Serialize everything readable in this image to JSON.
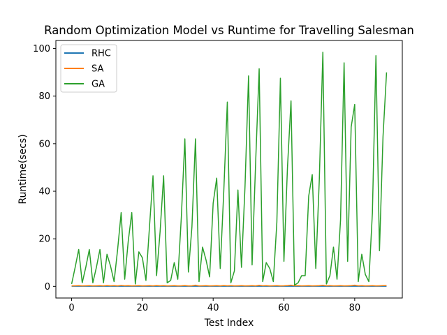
{
  "chart_data": {
    "type": "line",
    "title": "Random Optimization Model vs Runtime for Travelling Salesman",
    "xlabel": "Test Index",
    "ylabel": "Runtime(secs)",
    "xlim": [
      -4.45,
      93.45
    ],
    "ylim": [
      -4.9,
      103.4
    ],
    "xticks": [
      0,
      20,
      40,
      60,
      80
    ],
    "yticks": [
      0,
      20,
      40,
      60,
      80,
      100
    ],
    "legend_position": "upper-left",
    "grid": false,
    "series": [
      {
        "name": "RHC",
        "color": "#1f77b4",
        "values": [
          0.05,
          0.06,
          0.05,
          0.07,
          0.06,
          0.05,
          0.08,
          0.06,
          0.05,
          0.07,
          0.06,
          0.05,
          0.06,
          0.07,
          0.05,
          0.06,
          0.07,
          0.05,
          0.06,
          0.08,
          0.06,
          0.05,
          0.07,
          0.06,
          0.05,
          0.07,
          0.06,
          0.05,
          0.06,
          0.07,
          0.05,
          0.06,
          0.08,
          0.06,
          0.05,
          0.07,
          0.06,
          0.05,
          0.06,
          0.07,
          0.05,
          0.06,
          0.07,
          0.05,
          0.06,
          0.08,
          0.06,
          0.05,
          0.07,
          0.06,
          0.05,
          0.07,
          0.06,
          0.05,
          0.06,
          0.07,
          0.05,
          0.06,
          0.08,
          0.06,
          0.05,
          0.07,
          0.06,
          0.05,
          0.06,
          0.07,
          0.05,
          0.06,
          0.07,
          0.05,
          0.06,
          0.08,
          0.06,
          0.05,
          0.07,
          0.06,
          0.05,
          0.07,
          0.06,
          0.05,
          0.06,
          0.07,
          0.05,
          0.06,
          0.08,
          0.06,
          0.05,
          0.07,
          0.06,
          0.05
        ]
      },
      {
        "name": "SA",
        "color": "#ff7f0e",
        "values": [
          0.2,
          0.25,
          0.3,
          0.2,
          0.25,
          0.3,
          0.2,
          0.25,
          0.3,
          0.2,
          0.35,
          0.25,
          0.3,
          0.2,
          0.4,
          0.25,
          0.3,
          0.2,
          0.25,
          0.3,
          0.2,
          0.25,
          0.3,
          0.2,
          0.35,
          0.25,
          0.3,
          0.2,
          0.25,
          0.3,
          0.2,
          0.25,
          0.35,
          0.2,
          0.25,
          0.5,
          0.2,
          0.25,
          0.3,
          0.2,
          0.25,
          0.3,
          0.2,
          0.35,
          0.25,
          0.3,
          0.2,
          0.25,
          0.3,
          0.2,
          0.25,
          0.3,
          0.2,
          0.45,
          0.25,
          0.3,
          0.2,
          0.25,
          0.3,
          0.2,
          0.25,
          0.35,
          0.5,
          0.25,
          0.3,
          0.2,
          0.25,
          0.3,
          0.2,
          0.25,
          0.3,
          0.45,
          0.25,
          0.3,
          0.2,
          0.25,
          0.3,
          0.2,
          0.25,
          0.3,
          0.5,
          0.25,
          0.3,
          0.2,
          0.25,
          0.3,
          0.2,
          0.25,
          0.3,
          0.35
        ]
      },
      {
        "name": "GA",
        "color": "#2ca02c",
        "values": [
          1.0,
          8.0,
          15.5,
          1.5,
          8.0,
          15.5,
          1.5,
          8.0,
          15.5,
          1.5,
          13.5,
          8.5,
          2.0,
          15.5,
          31.0,
          3.0,
          19.0,
          31.0,
          1.0,
          14.5,
          12.0,
          2.5,
          25.0,
          46.5,
          4.5,
          23.0,
          46.5,
          1.5,
          2.5,
          10.0,
          3.0,
          29.0,
          62.0,
          6.0,
          25.0,
          62.0,
          2.0,
          16.5,
          11.0,
          4.0,
          35.0,
          45.5,
          7.5,
          40.0,
          77.5,
          1.5,
          6.5,
          40.5,
          8.0,
          42.0,
          88.5,
          9.0,
          52.0,
          91.5,
          2.0,
          10.0,
          7.5,
          2.0,
          27.0,
          87.5,
          10.5,
          50.0,
          78.0,
          0.5,
          1.5,
          4.5,
          4.5,
          38.0,
          47.0,
          7.5,
          45.0,
          98.5,
          1.0,
          4.5,
          16.5,
          3.0,
          28.0,
          94.0,
          10.5,
          67.0,
          76.5,
          2.0,
          13.5,
          5.0,
          2.0,
          31.0,
          97.0,
          15.0,
          63.0,
          90.0
        ]
      }
    ]
  }
}
